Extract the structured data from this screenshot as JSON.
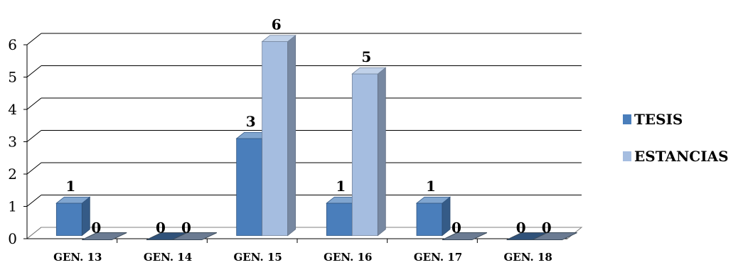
{
  "chart_data": {
    "type": "bar",
    "title": "",
    "xlabel": "",
    "ylabel": "",
    "categories": [
      "GEN. 13",
      "GEN. 14",
      "GEN. 15",
      "GEN. 16",
      "GEN. 17",
      "GEN. 18"
    ],
    "series": [
      {
        "name": "TESIS",
        "values": [
          1,
          0,
          3,
          1,
          1,
          0
        ],
        "color": "#4a7ebb"
      },
      {
        "name": "ESTANCIAS",
        "values": [
          0,
          0,
          6,
          5,
          0,
          0
        ],
        "color": "#a5bde0"
      }
    ],
    "ylim": [
      0,
      6
    ],
    "yticks": [
      0,
      1,
      2,
      3,
      4,
      5,
      6
    ],
    "grid": true,
    "legend_position": "right",
    "style": "3d-clustered-column"
  }
}
